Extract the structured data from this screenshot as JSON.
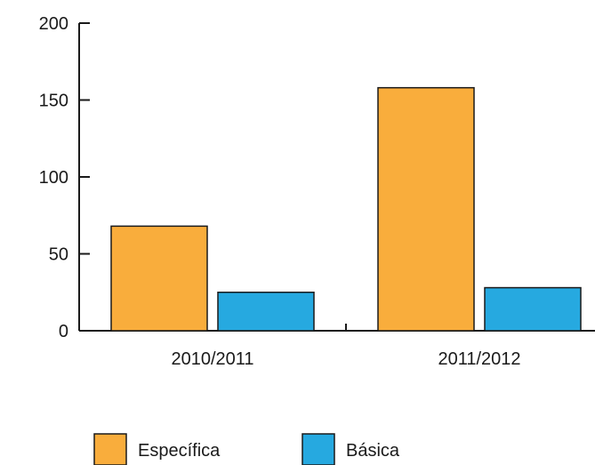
{
  "chart_data": {
    "type": "bar",
    "title": "",
    "xlabel": "",
    "ylabel": "",
    "categories": [
      "2010/2011",
      "2011/2012"
    ],
    "series": [
      {
        "name": "Específica",
        "values": [
          68,
          158
        ],
        "color": "#f9ad3c"
      },
      {
        "name": "Básica",
        "values": [
          25,
          28
        ],
        "color": "#26a9e0"
      }
    ],
    "ylim": [
      0,
      200
    ],
    "yticks": [
      0,
      50,
      100,
      150,
      200
    ],
    "ytick_labels": [
      "0",
      "50",
      "100",
      "150",
      "200"
    ],
    "grid": false,
    "legend_position": "bottom"
  }
}
